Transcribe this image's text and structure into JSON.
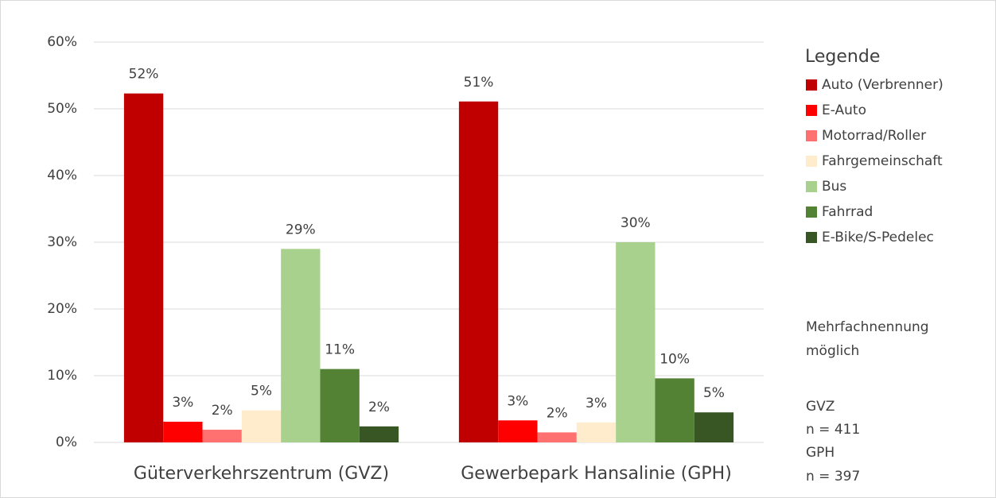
{
  "chart_data": {
    "type": "bar",
    "categories": [
      "Güterverkehrszentrum (GVZ)",
      "Gewerbepark Hansalinie (GPH)"
    ],
    "series": [
      {
        "name": "Auto (Verbrenner)",
        "color": "#c00000",
        "values": [
          52.3,
          51.1
        ],
        "value_labels": [
          "52%",
          "51%"
        ]
      },
      {
        "name": "E-Auto",
        "color": "#ff0000",
        "values": [
          3.1,
          3.3
        ],
        "value_labels": [
          "3%",
          "3%"
        ]
      },
      {
        "name": "Motorrad/Roller",
        "color": "#ff7070",
        "values": [
          1.9,
          1.5
        ],
        "value_labels": [
          "2%",
          "2%"
        ]
      },
      {
        "name": "Fahrgemeinschaft",
        "color": "#ffeccc",
        "values": [
          4.8,
          3.0
        ],
        "value_labels": [
          "5%",
          "3%"
        ]
      },
      {
        "name": "Bus",
        "color": "#a9d18e",
        "values": [
          29,
          30
        ],
        "value_labels": [
          "29%",
          "30%"
        ]
      },
      {
        "name": "Fahrrad",
        "color": "#548235",
        "values": [
          11,
          9.6
        ],
        "value_labels": [
          "11%",
          "10%"
        ]
      },
      {
        "name": "E-Bike/S-Pedelec",
        "color": "#375623",
        "values": [
          2.4,
          4.5
        ],
        "value_labels": [
          "2%",
          "5%"
        ]
      }
    ],
    "ylim": [
      0,
      60
    ],
    "yticks": [
      {
        "value": 0,
        "label": "0%"
      },
      {
        "value": 10,
        "label": "10%"
      },
      {
        "value": 20,
        "label": "20%"
      },
      {
        "value": 30,
        "label": "30%"
      },
      {
        "value": 40,
        "label": "40%"
      },
      {
        "value": 50,
        "label": "50%"
      },
      {
        "value": 60,
        "label": "60%"
      }
    ],
    "grid": true,
    "legend_title": "Legende",
    "legend_position": "right",
    "notes": [
      "Mehrfachnennung",
      "möglich",
      "GVZ",
      "n = 411",
      "GPH",
      "n = 397"
    ]
  }
}
